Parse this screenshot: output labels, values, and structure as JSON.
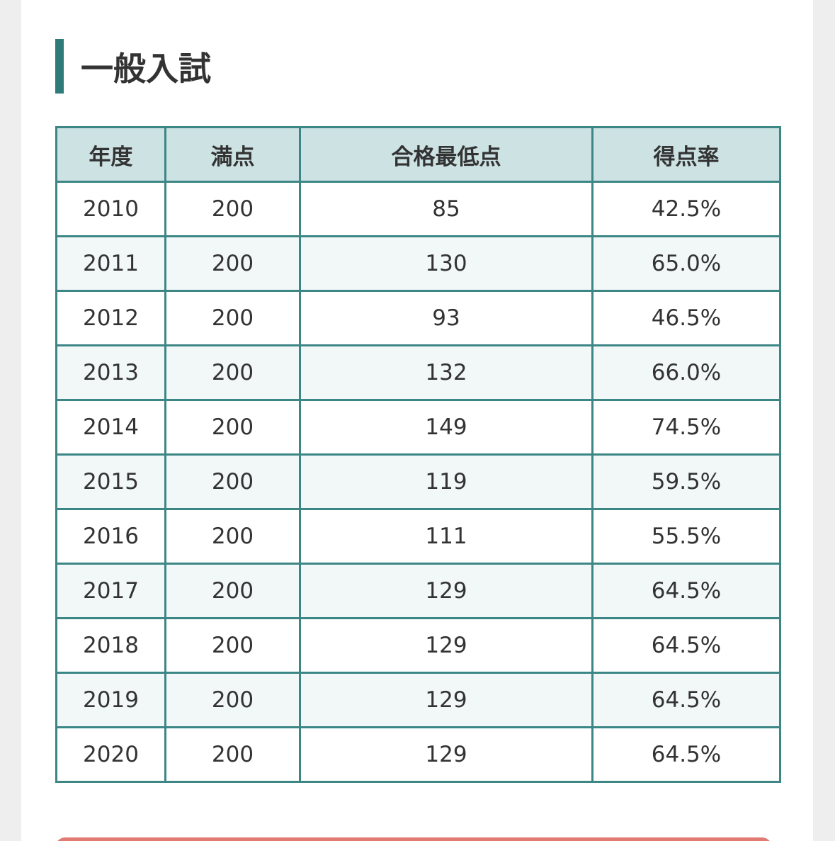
{
  "heading": "一般入試",
  "table": {
    "header": [
      "年度",
      "満点",
      "合格最低点",
      "得点率"
    ],
    "rows": [
      [
        "2010",
        "200",
        "85",
        "42.5%"
      ],
      [
        "2011",
        "200",
        "130",
        "65.0%"
      ],
      [
        "2012",
        "200",
        "93",
        "46.5%"
      ],
      [
        "2013",
        "200",
        "132",
        "66.0%"
      ],
      [
        "2014",
        "200",
        "149",
        "74.5%"
      ],
      [
        "2015",
        "200",
        "119",
        "59.5%"
      ],
      [
        "2016",
        "200",
        "111",
        "55.5%"
      ],
      [
        "2017",
        "200",
        "129",
        "64.5%"
      ],
      [
        "2018",
        "200",
        "129",
        "64.5%"
      ],
      [
        "2019",
        "200",
        "129",
        "64.5%"
      ],
      [
        "2020",
        "200",
        "129",
        "64.5%"
      ]
    ]
  }
}
